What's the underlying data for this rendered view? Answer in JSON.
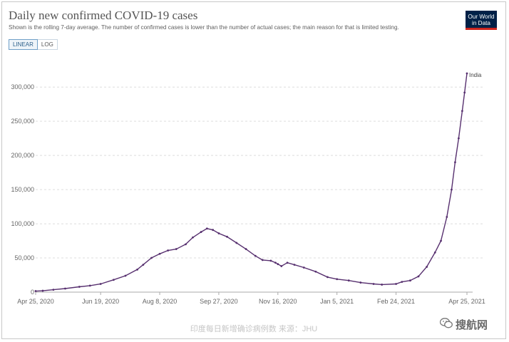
{
  "header": {
    "title": "Daily new confirmed COVID-19 cases",
    "subtitle": "Shown is the rolling 7-day average. The number of confirmed cases is lower than the number of actual cases; the main reason for that is limited testing.",
    "logo_line1": "Our World",
    "logo_line2": "in Data"
  },
  "controls": {
    "linear_label": "LINEAR",
    "log_label": "LOG",
    "active": "LINEAR"
  },
  "footer": {
    "caption": "印度每日新增确诊病例数 来源：JHU",
    "watermark": "搜航网"
  },
  "colors": {
    "series": "#57306f",
    "grid": "#dddddd",
    "axis_text": "#666666"
  },
  "chart_data": {
    "type": "line",
    "ylim": [
      0,
      320000
    ],
    "yticks": [
      0,
      50000,
      100000,
      150000,
      200000,
      250000,
      300000
    ],
    "ytick_labels": [
      "0",
      "50,000",
      "100,000",
      "150,000",
      "200,000",
      "250,000",
      "300,000"
    ],
    "xlim": [
      "2020-04-25",
      "2021-04-25"
    ],
    "xticks": [
      "2020-04-25",
      "2020-06-19",
      "2020-08-08",
      "2020-09-27",
      "2020-11-16",
      "2021-01-05",
      "2021-02-24",
      "2021-04-25"
    ],
    "xtick_labels": [
      "Apr 25, 2020",
      "Jun 19, 2020",
      "Aug 8, 2020",
      "Sep 27, 2020",
      "Nov 16, 2020",
      "Jan 5, 2021",
      "Feb 24, 2021",
      "Apr 25, 2021"
    ],
    "grid": "horizontal dashed",
    "series": [
      {
        "name": "India",
        "points": [
          [
            "2020-04-25",
            1500
          ],
          [
            "2020-05-01",
            2000
          ],
          [
            "2020-05-10",
            3500
          ],
          [
            "2020-05-20",
            5200
          ],
          [
            "2020-06-01",
            7800
          ],
          [
            "2020-06-10",
            9500
          ],
          [
            "2020-06-19",
            12000
          ],
          [
            "2020-06-30",
            18000
          ],
          [
            "2020-07-10",
            24000
          ],
          [
            "2020-07-20",
            33000
          ],
          [
            "2020-07-25",
            40000
          ],
          [
            "2020-08-01",
            50000
          ],
          [
            "2020-08-08",
            56000
          ],
          [
            "2020-08-15",
            61000
          ],
          [
            "2020-08-22",
            63000
          ],
          [
            "2020-08-30",
            70000
          ],
          [
            "2020-09-05",
            80000
          ],
          [
            "2020-09-12",
            88000
          ],
          [
            "2020-09-17",
            93000
          ],
          [
            "2020-09-22",
            91000
          ],
          [
            "2020-09-27",
            86000
          ],
          [
            "2020-10-04",
            81000
          ],
          [
            "2020-10-12",
            72000
          ],
          [
            "2020-10-20",
            63000
          ],
          [
            "2020-10-28",
            53000
          ],
          [
            "2020-11-03",
            47000
          ],
          [
            "2020-11-10",
            46000
          ],
          [
            "2020-11-14",
            43000
          ],
          [
            "2020-11-16",
            41000
          ],
          [
            "2020-11-19",
            38000
          ],
          [
            "2020-11-24",
            43000
          ],
          [
            "2020-11-30",
            40000
          ],
          [
            "2020-12-08",
            36000
          ],
          [
            "2020-12-18",
            30000
          ],
          [
            "2020-12-28",
            22000
          ],
          [
            "2021-01-05",
            19000
          ],
          [
            "2021-01-15",
            17000
          ],
          [
            "2021-01-25",
            14000
          ],
          [
            "2021-02-05",
            12000
          ],
          [
            "2021-02-12",
            11000
          ],
          [
            "2021-02-24",
            12000
          ],
          [
            "2021-03-01",
            15000
          ],
          [
            "2021-03-08",
            17000
          ],
          [
            "2021-03-15",
            23000
          ],
          [
            "2021-03-22",
            37000
          ],
          [
            "2021-03-29",
            58000
          ],
          [
            "2021-04-03",
            75000
          ],
          [
            "2021-04-08",
            110000
          ],
          [
            "2021-04-12",
            150000
          ],
          [
            "2021-04-15",
            190000
          ],
          [
            "2021-04-18",
            225000
          ],
          [
            "2021-04-21",
            265000
          ],
          [
            "2021-04-23",
            292000
          ],
          [
            "2021-04-25",
            320000
          ]
        ]
      }
    ]
  }
}
